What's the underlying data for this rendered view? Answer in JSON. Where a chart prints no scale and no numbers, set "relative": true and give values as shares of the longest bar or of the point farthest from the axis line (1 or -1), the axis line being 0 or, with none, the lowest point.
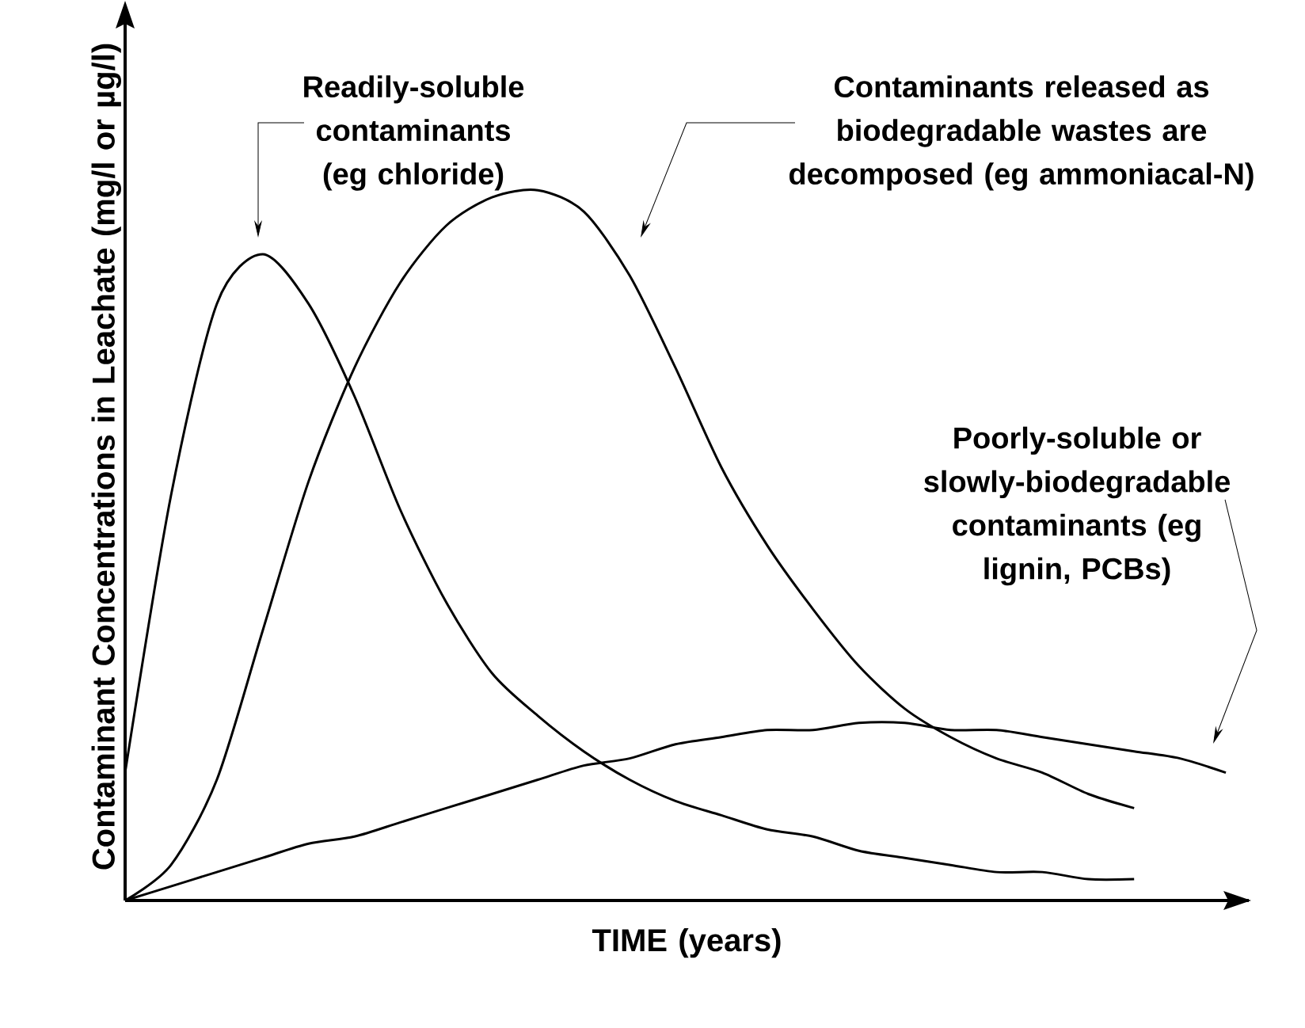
{
  "chart_data": {
    "type": "line",
    "relative": true,
    "xlabel": "TIME (years)",
    "ylabel": "Contaminant Concentrations in Leachate (mg/l or µg/l)",
    "categories": [
      null,
      null,
      null,
      null,
      null,
      null,
      null,
      null,
      null,
      null,
      null,
      null,
      null,
      null,
      null,
      null,
      null,
      null,
      null,
      null,
      null,
      null,
      null,
      null,
      null
    ],
    "series": [
      {
        "color": "#000000",
        "values": [
          0.18,
          0.57,
          0.84,
          0.91,
          0.84,
          0.71,
          0.55,
          0.42,
          0.32,
          0.26,
          0.21,
          0.17,
          0.14,
          0.12,
          0.1,
          0.09,
          0.07,
          0.06,
          0.05,
          0.04,
          0.04,
          0.03,
          0.03,
          null,
          null
        ]
      },
      {
        "color": "#000000",
        "values": [
          0,
          0.05,
          0.17,
          0.38,
          0.59,
          0.75,
          0.87,
          0.95,
          0.99,
          1.0,
          0.97,
          0.88,
          0.75,
          0.61,
          0.5,
          0.41,
          0.33,
          0.27,
          0.23,
          0.2,
          0.18,
          0.15,
          0.13,
          null,
          null
        ]
      },
      {
        "color": "#000000",
        "values": [
          0,
          0.02,
          0.04,
          0.06,
          0.08,
          0.09,
          0.11,
          0.13,
          0.15,
          0.17,
          0.19,
          0.2,
          0.22,
          0.23,
          0.24,
          0.24,
          0.25,
          0.25,
          0.24,
          0.24,
          0.23,
          0.22,
          0.21,
          0.2,
          0.18
        ]
      }
    ],
    "annotations": [
      "Readily-soluble contaminants (eg chloride)",
      "Contaminants released as biodegradable wastes are decomposed (eg ammoniacal-N)",
      "Poorly-soluble or slowly-biodegradable contaminants (eg lignin, PCBs)"
    ]
  }
}
